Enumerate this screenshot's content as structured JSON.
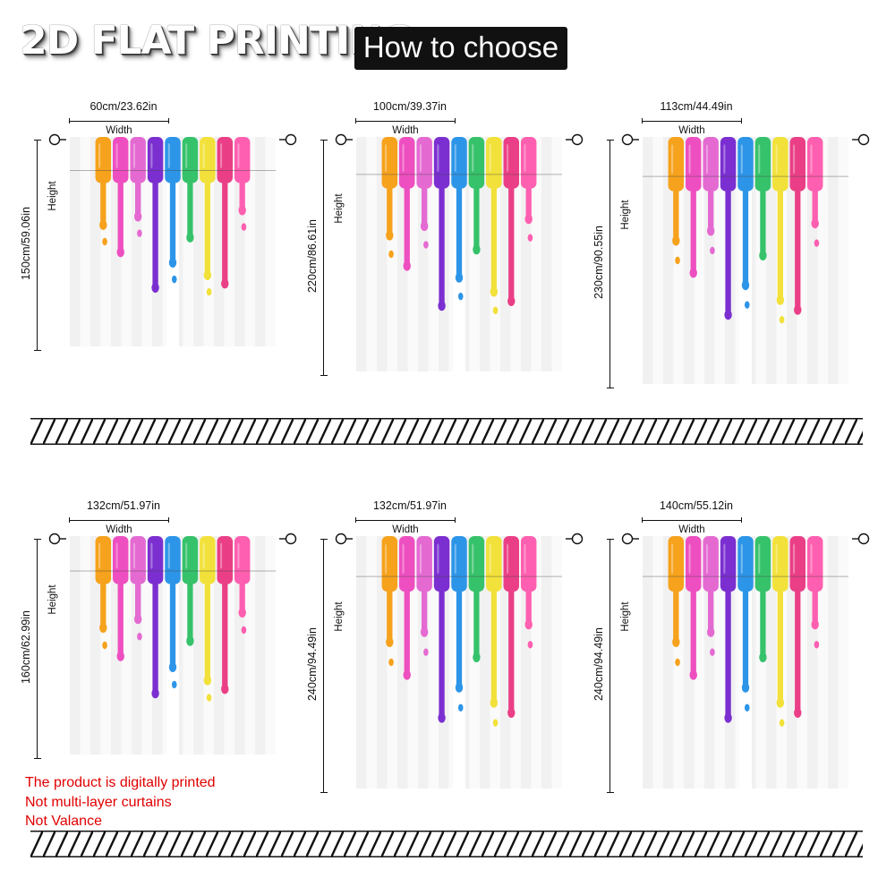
{
  "header": {
    "title": "2D FLAT PRINTING",
    "badge": "How to choose"
  },
  "labels": {
    "width": "Width",
    "height": "Height"
  },
  "sizes": [
    {
      "width": "60cm/23.62in",
      "height": "150cm/59.06in"
    },
    {
      "width": "100cm/39.37in",
      "height": "220cm/86.61in"
    },
    {
      "width": "113cm/44.49in",
      "height": "230cm/90.55in"
    },
    {
      "width": "132cm/51.97in",
      "height": "160cm/62.99in"
    },
    {
      "width": "132cm/51.97in",
      "height": "240cm/94.49in"
    },
    {
      "width": "140cm/55.12in",
      "height": "240cm/94.49in"
    }
  ],
  "notes": [
    "The product is digitally printed",
    "Not multi-layer curtains",
    "Not Valance"
  ],
  "paint_colors": [
    "#f6a21c",
    "#ee4fc0",
    "#e46ad2",
    "#7b2fd0",
    "#2d95e8",
    "#36c26a",
    "#f2e13a",
    "#ea3f86",
    "#ff5fb0"
  ]
}
